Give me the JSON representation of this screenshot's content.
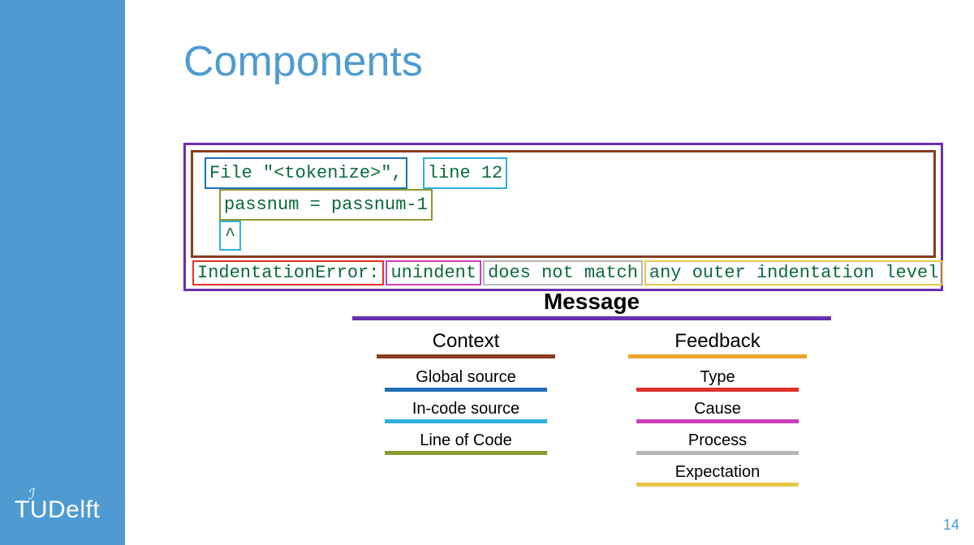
{
  "title": "Components",
  "page_number": "14",
  "logo": {
    "tu": "TU",
    "delft": "Delft"
  },
  "colors": {
    "brand": "#4f9bd1",
    "message": "#6a2fb0",
    "context": "#8a3c1e",
    "feedback": "#eea32f",
    "global_source": "#1f70b8",
    "incode_source": "#2fb0dc",
    "line_of_code": "#8a9a2f",
    "type": "#e0302a",
    "cause": "#c93fb9",
    "process": "#b6b6b6",
    "expectation": "#e6c64a",
    "code_text": "#0a6a3a"
  },
  "error": {
    "context": {
      "file_label": "File \"<tokenize>\",",
      "line_label": "line 12",
      "code_line": "passnum = passnum-1",
      "caret": "^"
    },
    "feedback": {
      "type": "IndentationError:",
      "cause": "unindent",
      "process": "does not match",
      "expectation": "any outer indentation level"
    }
  },
  "legend": {
    "message": "Message",
    "context": {
      "title": "Context",
      "items": [
        "Global source",
        "In-code source",
        "Line of Code"
      ]
    },
    "feedback": {
      "title": "Feedback",
      "items": [
        "Type",
        "Cause",
        "Process",
        "Expectation"
      ]
    }
  }
}
